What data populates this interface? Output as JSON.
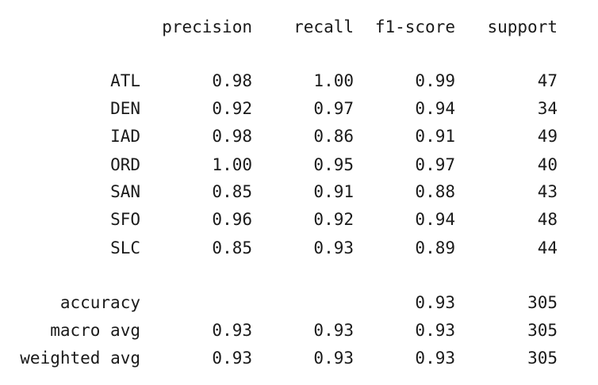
{
  "header": {
    "precision": "precision",
    "recall": "recall",
    "f1": "f1-score",
    "support": "support"
  },
  "classes": [
    {
      "label": "ATL",
      "precision": "0.98",
      "recall": "1.00",
      "f1": "0.99",
      "support": "47"
    },
    {
      "label": "DEN",
      "precision": "0.92",
      "recall": "0.97",
      "f1": "0.94",
      "support": "34"
    },
    {
      "label": "IAD",
      "precision": "0.98",
      "recall": "0.86",
      "f1": "0.91",
      "support": "49"
    },
    {
      "label": "ORD",
      "precision": "1.00",
      "recall": "0.95",
      "f1": "0.97",
      "support": "40"
    },
    {
      "label": "SAN",
      "precision": "0.85",
      "recall": "0.91",
      "f1": "0.88",
      "support": "43"
    },
    {
      "label": "SFO",
      "precision": "0.96",
      "recall": "0.92",
      "f1": "0.94",
      "support": "48"
    },
    {
      "label": "SLC",
      "precision": "0.85",
      "recall": "0.93",
      "f1": "0.89",
      "support": "44"
    }
  ],
  "summary": {
    "accuracy": {
      "label": "accuracy",
      "f1": "0.93",
      "support": "305"
    },
    "macro": {
      "label": "macro avg",
      "precision": "0.93",
      "recall": "0.93",
      "f1": "0.93",
      "support": "305"
    },
    "weighted": {
      "label": "weighted avg",
      "precision": "0.93",
      "recall": "0.93",
      "f1": "0.93",
      "support": "305"
    }
  }
}
